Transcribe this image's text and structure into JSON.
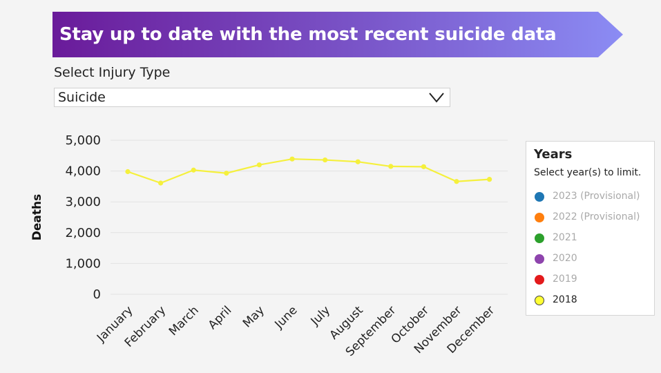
{
  "banner": {
    "title": "Stay up to date with the most recent suicide data"
  },
  "filter": {
    "label": "Select Injury Type",
    "value": "Suicide"
  },
  "legend": {
    "title": "Years",
    "subtitle": "Select year(s) to limit.",
    "items": [
      {
        "label": "2023 (Provisional)",
        "color": "#1f77b4",
        "active": false
      },
      {
        "label": "2022 (Provisional)",
        "color": "#ff7f0e",
        "active": false
      },
      {
        "label": "2021",
        "color": "#2ca02c",
        "active": false
      },
      {
        "label": "2020",
        "color": "#8e44ad",
        "active": false
      },
      {
        "label": "2019",
        "color": "#e31a1c",
        "active": false
      },
      {
        "label": "2018",
        "color": "#ffff33",
        "active": true
      }
    ]
  },
  "chart_data": {
    "type": "line",
    "ylabel": "Deaths",
    "xlabel": "",
    "ylim": [
      0,
      5000
    ],
    "yticks": [
      0,
      1000,
      2000,
      3000,
      4000,
      5000
    ],
    "ytick_labels": [
      "0",
      "1,000",
      "2,000",
      "3,000",
      "4,000",
      "5,000"
    ],
    "categories": [
      "January",
      "February",
      "March",
      "April",
      "May",
      "June",
      "July",
      "August",
      "September",
      "October",
      "November",
      "December"
    ],
    "series": [
      {
        "name": "2018",
        "color": "#f5f03c",
        "values": [
          3980,
          3610,
          4030,
          3930,
          4200,
          4390,
          4360,
          4300,
          4150,
          4140,
          3660,
          3730
        ]
      }
    ],
    "grid": true,
    "legend_position": "right"
  },
  "colors": {
    "banner_start": "#6a1b9a",
    "banner_end": "#8b8cf4",
    "series_line": "#f5f03c"
  }
}
